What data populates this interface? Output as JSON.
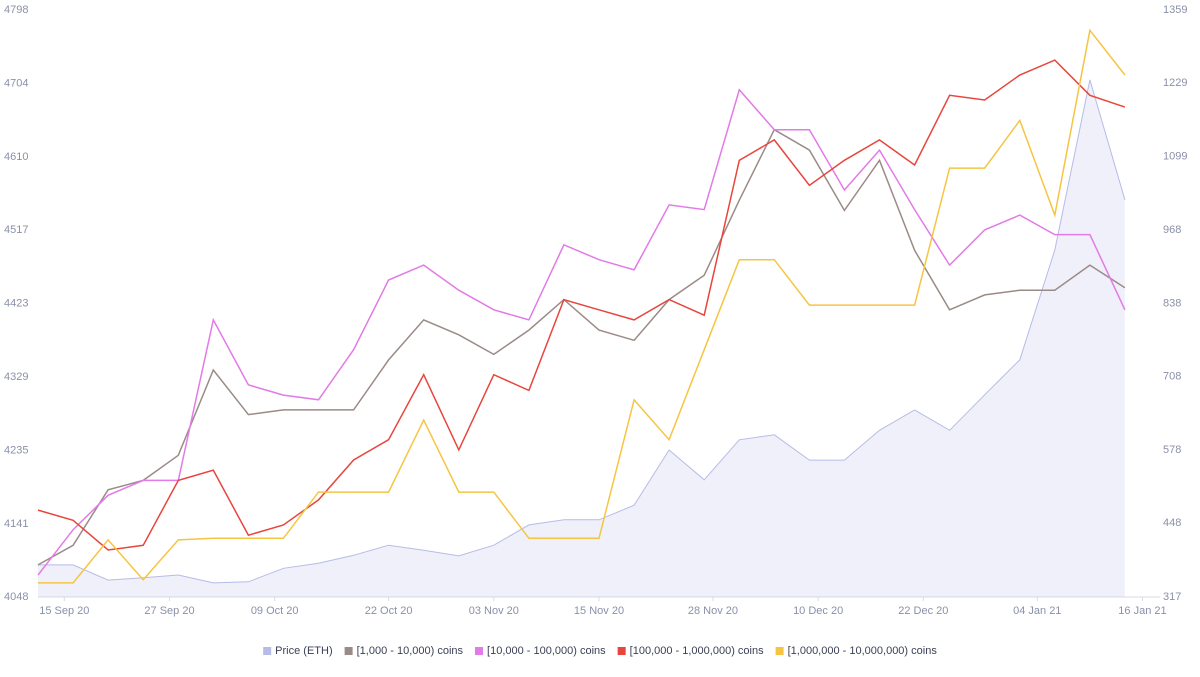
{
  "chart_data": {
    "type": "line",
    "x": [
      "2020-09-12",
      "2020-09-16",
      "2020-09-20",
      "2020-09-24",
      "2020-09-28",
      "2020-10-02",
      "2020-10-06",
      "2020-10-10",
      "2020-10-14",
      "2020-10-18",
      "2020-10-22",
      "2020-10-26",
      "2020-10-30",
      "2020-11-03",
      "2020-11-07",
      "2020-11-11",
      "2020-11-15",
      "2020-11-19",
      "2020-11-23",
      "2020-11-27",
      "2020-12-01",
      "2020-12-05",
      "2020-12-09",
      "2020-12-13",
      "2020-12-17",
      "2020-12-21",
      "2020-12-25",
      "2020-12-29",
      "2021-01-02",
      "2021-01-06",
      "2021-01-10",
      "2021-01-14"
    ],
    "xlim": [
      "2020-09-12",
      "2021-01-18"
    ],
    "xticks": [
      {
        "value": "2020-09-15",
        "label": "15 Sep 20"
      },
      {
        "value": "2020-09-27",
        "label": "27 Sep 20"
      },
      {
        "value": "2020-10-09",
        "label": "09 Oct 20"
      },
      {
        "value": "2020-10-22",
        "label": "22 Oct 20"
      },
      {
        "value": "2020-11-03",
        "label": "03 Nov 20"
      },
      {
        "value": "2020-11-15",
        "label": "15 Nov 20"
      },
      {
        "value": "2020-11-28",
        "label": "28 Nov 20"
      },
      {
        "value": "2020-12-10",
        "label": "10 Dec 20"
      },
      {
        "value": "2020-12-22",
        "label": "22 Dec 20"
      },
      {
        "value": "2021-01-04",
        "label": "04 Jan 21"
      },
      {
        "value": "2021-01-16",
        "label": "16 Jan 21"
      }
    ],
    "ylim": [
      4048,
      4798
    ],
    "yticks": [
      4048,
      4141,
      4235,
      4329,
      4423,
      4517,
      4610,
      4704,
      4798
    ],
    "y2lim": [
      317,
      1359
    ],
    "y2ticks": [
      317,
      448,
      578,
      708,
      838,
      968,
      1099,
      1229,
      1359
    ],
    "grid": false,
    "legend": "bottom",
    "series": [
      {
        "name": "Price (ETH)",
        "color": "#b6bce6",
        "axis": "y2",
        "area": true,
        "values": [
          374,
          374,
          347,
          351,
          356,
          342,
          344,
          368,
          377,
          391,
          409,
          400,
          390,
          409,
          445,
          454,
          454,
          480,
          578,
          525,
          596,
          605,
          560,
          560,
          613,
          649,
          613,
          676,
          738,
          933,
          1235,
          1022
        ]
      },
      {
        "name": "[1,000 - 10,000) coins",
        "color": "#9b8b87",
        "values": [
          4089,
          4114,
          4185,
          4197,
          4229,
          4338,
          4281,
          4287,
          4287,
          4287,
          4351,
          4402,
          4383,
          4358,
          4389,
          4428,
          4389,
          4376,
          4428,
          4459,
          4555,
          4645,
          4619,
          4542,
          4606,
          4491,
          4415,
          4434,
          4440,
          4440,
          4472,
          4443
        ]
      },
      {
        "name": "[10,000 - 100,000) coins",
        "color": "#e27ae8",
        "values": [
          4076,
          4134,
          4178,
          4197,
          4197,
          4402,
          4319,
          4306,
          4300,
          4364,
          4453,
          4472,
          4440,
          4415,
          4402,
          4498,
          4479,
          4466,
          4549,
          4543,
          4696,
          4645,
          4645,
          4568,
          4619,
          4543,
          4472,
          4517,
          4536,
          4511,
          4511,
          4415
        ]
      },
      {
        "name": "[100,000  - 1,000,000) coins",
        "color": "#e8453c",
        "values": [
          4159,
          4146,
          4108,
          4114,
          4197,
          4210,
          4127,
          4140,
          4172,
          4223,
          4249,
          4332,
          4236,
          4332,
          4312,
          4428,
          4415,
          4402,
          4428,
          4408,
          4606,
          4632,
          4574,
          4606,
          4632,
          4600,
          4689,
          4683,
          4715,
          4734,
          4689,
          4674
        ]
      },
      {
        "name": "[1,000,000 - 10,000,000) coins",
        "color": "#f5c542",
        "values": [
          4066,
          4066,
          4121,
          4070,
          4121,
          4123,
          4123,
          4123,
          4182,
          4182,
          4182,
          4274,
          4182,
          4182,
          4123,
          4123,
          4123,
          4300,
          4249,
          4364,
          4479,
          4479,
          4421,
          4421,
          4421,
          4421,
          4596,
          4596,
          4657,
          4536,
          4772,
          4715
        ]
      }
    ]
  }
}
